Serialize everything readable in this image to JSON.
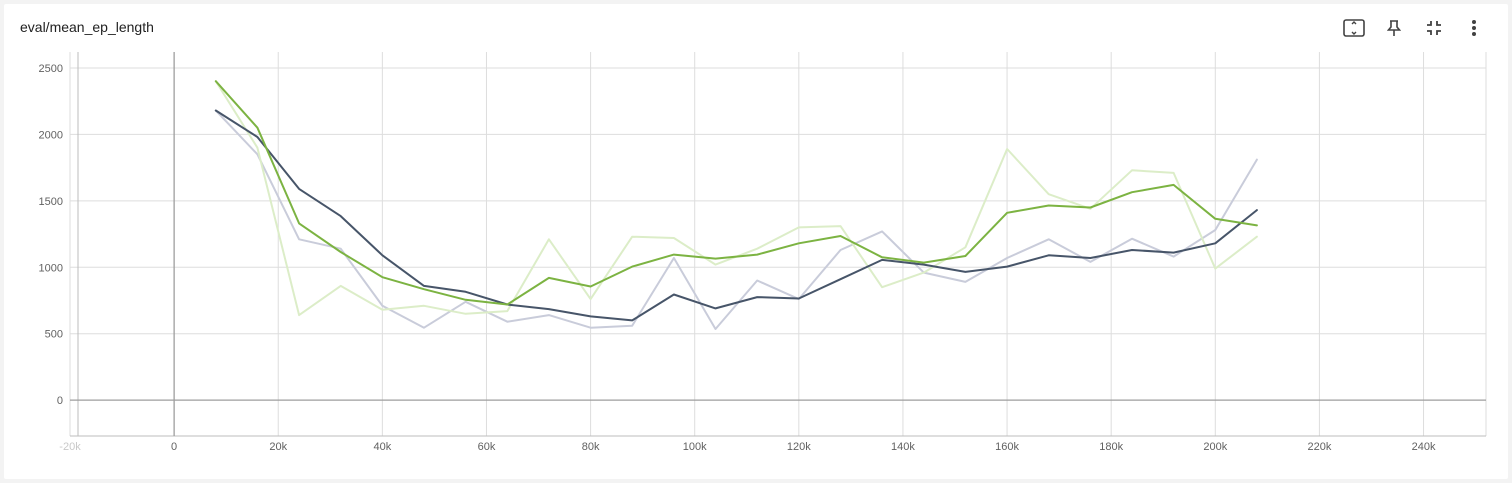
{
  "header": {
    "title": "eval/mean_ep_length"
  },
  "toolbar": {
    "items": [
      {
        "name": "fullscreen-icon"
      },
      {
        "name": "pin-icon"
      },
      {
        "name": "fit-domain-icon"
      },
      {
        "name": "more-vert-icon"
      }
    ]
  },
  "colors": {
    "axis": "#9e9e9e",
    "grid": "#dddddd",
    "tick_text": "#616161"
  },
  "chart_data": {
    "type": "line",
    "title": "eval/mean_ep_length",
    "xlabel": "",
    "ylabel": "",
    "xlim": [
      -20000,
      252000
    ],
    "ylim": [
      -270,
      2620
    ],
    "x_ticks": [
      -20000,
      0,
      20000,
      40000,
      60000,
      80000,
      100000,
      120000,
      140000,
      160000,
      180000,
      200000,
      220000,
      240000
    ],
    "x_tick_labels": [
      "-20k",
      "0",
      "20k",
      "40k",
      "60k",
      "80k",
      "100k",
      "120k",
      "140k",
      "160k",
      "180k",
      "200k",
      "220k",
      "240k"
    ],
    "y_ticks": [
      0,
      500,
      1000,
      1500,
      2000,
      2500
    ],
    "y_tick_labels": [
      "0",
      "500",
      "1000",
      "1500",
      "2000",
      "2500"
    ],
    "grid": true,
    "legend": "none",
    "series": [
      {
        "color": "#c9ccda",
        "kind": "raw",
        "x": [
          8000,
          16000,
          24000,
          32000,
          40000,
          48000,
          56000,
          64000,
          72000,
          80000,
          88000,
          96000,
          104000,
          112000,
          120000,
          128000,
          136000,
          144000,
          152000,
          160000,
          168000,
          176000,
          184000,
          192000,
          200000,
          208000
        ],
        "y": [
          2180,
          1850,
          1210,
          1140,
          710,
          545,
          740,
          590,
          640,
          545,
          560,
          1070,
          535,
          900,
          760,
          1130,
          1270,
          960,
          890,
          1070,
          1210,
          1040,
          1215,
          1080,
          1280,
          1810
        ]
      },
      {
        "color": "#dcedc8",
        "kind": "raw",
        "x": [
          8000,
          16000,
          24000,
          32000,
          40000,
          48000,
          56000,
          64000,
          72000,
          80000,
          88000,
          96000,
          104000,
          112000,
          120000,
          128000,
          136000,
          144000,
          152000,
          160000,
          168000,
          176000,
          184000,
          192000,
          200000,
          208000
        ],
        "y": [
          2400,
          1900,
          640,
          860,
          680,
          710,
          650,
          670,
          1210,
          760,
          1230,
          1220,
          1020,
          1140,
          1300,
          1310,
          850,
          960,
          1150,
          1890,
          1550,
          1440,
          1730,
          1710,
          990,
          1230
        ]
      },
      {
        "color": "#475569",
        "kind": "smoothed",
        "x": [
          8000,
          16000,
          24000,
          32000,
          40000,
          48000,
          56000,
          64000,
          72000,
          80000,
          88000,
          96000,
          104000,
          112000,
          120000,
          128000,
          136000,
          144000,
          152000,
          160000,
          168000,
          176000,
          184000,
          192000,
          200000,
          208000
        ],
        "y": [
          2180,
          1980,
          1590,
          1385,
          1090,
          860,
          815,
          720,
          685,
          630,
          600,
          795,
          690,
          775,
          765,
          910,
          1055,
          1020,
          965,
          1005,
          1090,
          1070,
          1130,
          1110,
          1180,
          1430
        ]
      },
      {
        "color": "#7cb342",
        "kind": "smoothed",
        "x": [
          8000,
          16000,
          24000,
          32000,
          40000,
          48000,
          56000,
          64000,
          72000,
          80000,
          88000,
          96000,
          104000,
          112000,
          120000,
          128000,
          136000,
          144000,
          152000,
          160000,
          168000,
          176000,
          184000,
          192000,
          200000,
          208000
        ],
        "y": [
          2400,
          2050,
          1330,
          1115,
          925,
          835,
          755,
          720,
          920,
          855,
          1005,
          1095,
          1065,
          1095,
          1180,
          1235,
          1075,
          1035,
          1085,
          1410,
          1465,
          1450,
          1565,
          1620,
          1365,
          1315
        ]
      }
    ]
  }
}
